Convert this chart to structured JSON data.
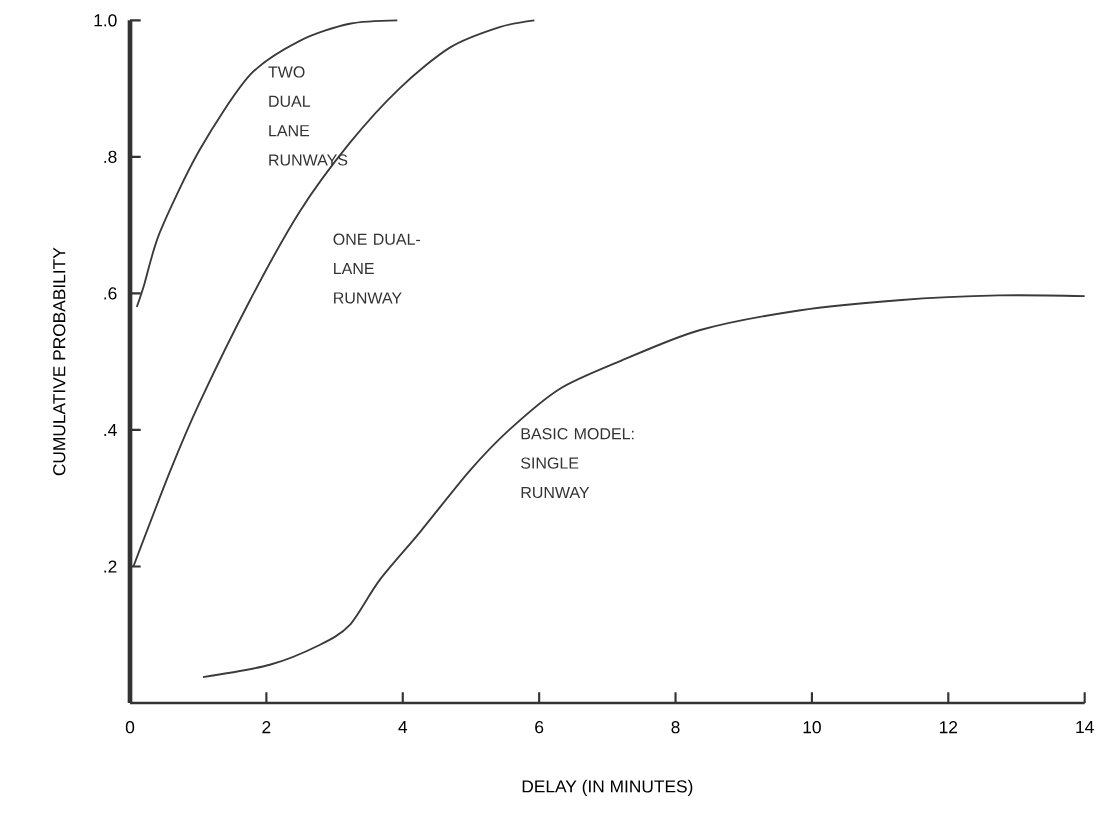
{
  "chart_data": {
    "type": "line",
    "xlabel": "DELAY (IN MINUTES)",
    "ylabel": "CUMULATIVE PROBABILITY",
    "xlim": [
      0,
      14
    ],
    "ylim": [
      0,
      1.0
    ],
    "xticks": [
      0,
      2,
      4,
      6,
      8,
      10,
      12,
      14
    ],
    "yticks": [
      {
        "value": 0.2,
        "label": ".2"
      },
      {
        "value": 0.4,
        "label": ".4"
      },
      {
        "value": 0.6,
        "label": ".6"
      },
      {
        "value": 0.8,
        "label": ".8"
      },
      {
        "value": 1.0,
        "label": "1.0"
      }
    ],
    "grid": false,
    "marker": "none",
    "line_style": "solid",
    "series": [
      {
        "name": "TWO DUAL LANE RUNWAYS",
        "color": "#3a3a3a",
        "x": [
          0.1,
          0.2,
          0.44,
          1.02,
          1.76,
          2.49,
          3.22,
          3.92
        ],
        "values": [
          0.58,
          0.61,
          0.69,
          0.81,
          0.92,
          0.97,
          0.995,
          1.0
        ]
      },
      {
        "name": "ONE DUAL-LANE RUNWAY",
        "color": "#3a3a3a",
        "x": [
          0.05,
          0.59,
          1.02,
          1.76,
          2.49,
          3.22,
          3.95,
          4.69,
          5.42,
          5.93
        ],
        "values": [
          0.2,
          0.34,
          0.44,
          0.59,
          0.72,
          0.82,
          0.9,
          0.96,
          0.99,
          1.0
        ]
      },
      {
        "name": "BASIC MODEL: SINGLE RUNWAY",
        "color": "#3a3a3a",
        "x": [
          1.07,
          2.05,
          2.78,
          3.22,
          3.66,
          4.25,
          4.98,
          5.56,
          6.3,
          7.17,
          8.35,
          9.81,
          11.27,
          12.74,
          14.0
        ],
        "values": [
          0.038,
          0.056,
          0.085,
          0.114,
          0.18,
          0.25,
          0.34,
          0.4,
          0.46,
          0.5,
          0.546,
          0.575,
          0.59,
          0.597,
          0.596
        ]
      }
    ],
    "legend": false
  }
}
